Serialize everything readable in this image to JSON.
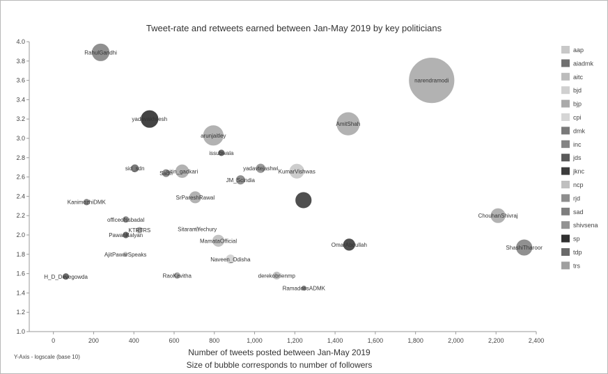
{
  "chart_data": {
    "type": "scatter",
    "title": "Tweet-rate and retweets earned between Jan-May 2019 by key politicians",
    "xlabel": "Number of tweets posted between Jan-May 2019",
    "subtitle": "Size of bubble corresponds to number of followers",
    "y_axis_note": "Y-Axis - logscale (base 10)",
    "xlim": [
      -120,
      2400
    ],
    "ylim": [
      1.0,
      4.0
    ],
    "x_ticks": [
      "0",
      "200",
      "400",
      "600",
      "800",
      "1,000",
      "1,200",
      "1,400",
      "1,600",
      "1,800",
      "2,000",
      "2,200",
      "2,400"
    ],
    "x_tick_values": [
      0,
      200,
      400,
      600,
      800,
      1000,
      1200,
      1400,
      1600,
      1800,
      2000,
      2200,
      2400
    ],
    "y_ticks": [
      "1.0",
      "1.2",
      "1.4",
      "1.6",
      "1.8",
      "2.0",
      "2.2",
      "2.4",
      "2.6",
      "2.8",
      "3.0",
      "3.2",
      "3.4",
      "3.6",
      "3.8",
      "4.0"
    ],
    "y_tick_values": [
      1.0,
      1.2,
      1.4,
      1.6,
      1.8,
      2.0,
      2.2,
      2.4,
      2.6,
      2.8,
      3.0,
      3.2,
      3.4,
      3.6,
      3.8,
      4.0
    ],
    "grid": false,
    "legend_position": "right",
    "legend": [
      {
        "name": "aap",
        "color": "#c8c8c8"
      },
      {
        "name": "aiadmk",
        "color": "#707070"
      },
      {
        "name": "aitc",
        "color": "#bcbcbc"
      },
      {
        "name": "bjd",
        "color": "#d0d0d0"
      },
      {
        "name": "bjp",
        "color": "#aaaaaa"
      },
      {
        "name": "cpi",
        "color": "#d6d6d6"
      },
      {
        "name": "dmk",
        "color": "#7a7a7a"
      },
      {
        "name": "inc",
        "color": "#848484"
      },
      {
        "name": "jds",
        "color": "#5a5a5a"
      },
      {
        "name": "jknc",
        "color": "#3c3c3c"
      },
      {
        "name": "ncp",
        "color": "#bfbfbf"
      },
      {
        "name": "rjd",
        "color": "#8e8e8e"
      },
      {
        "name": "sad",
        "color": "#7e7e7e"
      },
      {
        "name": "shivsena",
        "color": "#939393"
      },
      {
        "name": "sp",
        "color": "#303030"
      },
      {
        "name": "tdp",
        "color": "#6a6a6a"
      },
      {
        "name": "trs",
        "color": "#a0a0a0"
      }
    ],
    "points": [
      {
        "label": "RahulGandhi",
        "x": 235,
        "y": 3.89,
        "size": 13,
        "party": "inc"
      },
      {
        "label": "narendramodi",
        "x": 1880,
        "y": 3.6,
        "size": 33,
        "party": "bjp"
      },
      {
        "label": "yadavakhilesh",
        "x": 478,
        "y": 3.2,
        "size": 13,
        "party": "sp"
      },
      {
        "label": "AmitShah",
        "x": 1465,
        "y": 3.15,
        "size": 17,
        "party": "bjp"
      },
      {
        "label": "arunjaitley",
        "x": 795,
        "y": 3.03,
        "size": 15,
        "party": "bjp"
      },
      {
        "label": "issubwala",
        "x": 835,
        "y": 2.85,
        "size": 5,
        "party": "jds"
      },
      {
        "label": "sid_sdn",
        "x": 405,
        "y": 2.69,
        "size": 6,
        "party": "tdp"
      },
      {
        "label": "Sadh",
        "x": 560,
        "y": 2.64,
        "size": 6,
        "party": "sad"
      },
      {
        "label": "nitin_gadkari",
        "x": 640,
        "y": 2.66,
        "size": 10,
        "party": "bjp"
      },
      {
        "label": "yadavtejashwi",
        "x": 1030,
        "y": 2.69,
        "size": 7,
        "party": "rjd"
      },
      {
        "label": "KumarVishwas",
        "x": 1210,
        "y": 2.66,
        "size": 11,
        "party": "aap"
      },
      {
        "label": "JM_Scindia",
        "x": 930,
        "y": 2.57,
        "size": 7,
        "party": "inc"
      },
      {
        "label": "KanimozhiDMK",
        "x": 165,
        "y": 2.34,
        "size": 5,
        "party": "dmk"
      },
      {
        "label": "SrPareshRawal",
        "x": 705,
        "y": 2.39,
        "size": 9,
        "party": "bjp"
      },
      {
        "label": "",
        "x": 1243,
        "y": 2.36,
        "size": 12,
        "party": "jknc"
      },
      {
        "label": "officeofssbadal",
        "x": 360,
        "y": 2.16,
        "size": 5,
        "party": "sad"
      },
      {
        "label": "KTRTRS",
        "x": 428,
        "y": 2.05,
        "size": 5,
        "party": "trs"
      },
      {
        "label": "PawanKalyan",
        "x": 360,
        "y": 2.0,
        "size": 5,
        "party": "jds"
      },
      {
        "label": "SitaramYechury",
        "x": 715,
        "y": 2.06,
        "size": 4,
        "party": "cpi"
      },
      {
        "label": "MamataOfficial",
        "x": 820,
        "y": 1.94,
        "size": 9,
        "party": "aitc"
      },
      {
        "label": "OmarAbdullah",
        "x": 1470,
        "y": 1.9,
        "size": 9,
        "party": "jknc"
      },
      {
        "label": "ChouhanShivraj",
        "x": 2210,
        "y": 2.2,
        "size": 11,
        "party": "bjp"
      },
      {
        "label": "ShashiTharoor",
        "x": 2340,
        "y": 1.87,
        "size": 12,
        "party": "inc"
      },
      {
        "label": "AjitPawarSpeaks",
        "x": 358,
        "y": 1.8,
        "size": 4,
        "party": "ncp"
      },
      {
        "label": "Naveen_Odisha",
        "x": 880,
        "y": 1.75,
        "size": 7,
        "party": "bjd"
      },
      {
        "label": "H_D_Devegowda",
        "x": 62,
        "y": 1.57,
        "size": 5,
        "party": "jds"
      },
      {
        "label": "RaoKavitha",
        "x": 615,
        "y": 1.58,
        "size": 5,
        "party": "trs"
      },
      {
        "label": "derekobrienmp",
        "x": 1110,
        "y": 1.58,
        "size": 6,
        "party": "aitc"
      },
      {
        "label": "RamadossADMK",
        "x": 1245,
        "y": 1.45,
        "size": 4,
        "party": "aiadmk"
      }
    ]
  }
}
